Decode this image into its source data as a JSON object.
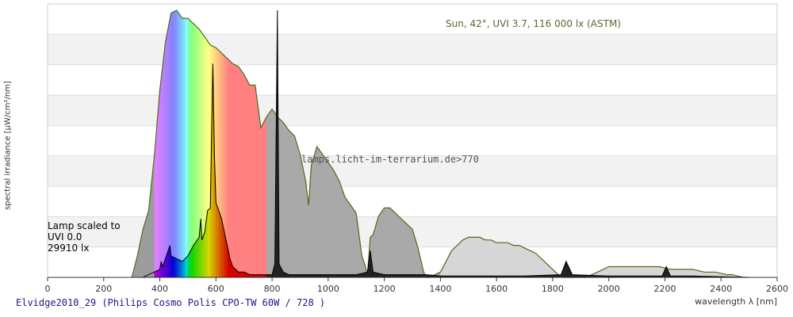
{
  "chart_data": {
    "type": "area",
    "title": "Elvidge2010_29 (Philips Cosmo Polis CPO-TW 60W / 728 )",
    "xlabel": "wavelength λ [nm]",
    "ylabel": "spectral irradiance [μW/cm²/nm]",
    "xlim": [
      0,
      2600
    ],
    "x_ticks": [
      "0",
      "200",
      "400",
      "600",
      "800",
      "1000",
      "1200",
      "1400",
      "1600",
      "1800",
      "2000",
      "2200",
      "2400",
      "2600"
    ],
    "grid": true,
    "legend": {
      "lines": [
        "Lamp scaled to",
        "UVI 0.0",
        "29910 lx"
      ],
      "placement": "left"
    },
    "annotations": {
      "sun": "Sun, 42°, UVI 3.7, 116 000 lx (ASTM)",
      "watermark": "lamps.licht-im-terrarium.de>770"
    },
    "series": [
      {
        "x": [
          300,
          320,
          340,
          360,
          380,
          400,
          420,
          440,
          460,
          480,
          500,
          520,
          540,
          560,
          580,
          600,
          620,
          640,
          660,
          680,
          700,
          720,
          740,
          760,
          780,
          800,
          820,
          840,
          860,
          880,
          900,
          920,
          930,
          940,
          960,
          980,
          1000,
          1020,
          1040,
          1060,
          1080,
          1100,
          1120,
          1130,
          1140,
          1150,
          1160,
          1180,
          1200,
          1220,
          1240,
          1260,
          1280,
          1300,
          1320,
          1340,
          1350,
          1360,
          1380,
          1400,
          1420,
          1440,
          1460,
          1480,
          1500,
          1520,
          1540,
          1560,
          1580,
          1600,
          1620,
          1640,
          1660,
          1680,
          1700,
          1720,
          1740,
          1760,
          1780,
          1800,
          1820,
          1840,
          1860,
          1880,
          1900,
          1920,
          1940,
          1960,
          1980,
          2000,
          2020,
          2040,
          2060,
          2080,
          2100,
          2120,
          2140,
          2160,
          2180,
          2200,
          2220,
          2240,
          2260,
          2280,
          2300,
          2320,
          2340,
          2360,
          2380,
          2400,
          2420,
          2440,
          2460,
          2480,
          2500
        ],
        "values": [
          0.0,
          0.08,
          0.18,
          0.25,
          0.45,
          0.7,
          0.88,
          0.99,
          1.0,
          0.97,
          0.97,
          0.95,
          0.93,
          0.9,
          0.87,
          0.86,
          0.84,
          0.82,
          0.8,
          0.79,
          0.76,
          0.72,
          0.72,
          0.56,
          0.6,
          0.63,
          0.6,
          0.58,
          0.55,
          0.53,
          0.46,
          0.36,
          0.27,
          0.42,
          0.49,
          0.46,
          0.43,
          0.4,
          0.36,
          0.3,
          0.27,
          0.24,
          0.08,
          0.05,
          0.01,
          0.15,
          0.16,
          0.23,
          0.26,
          0.26,
          0.24,
          0.22,
          0.2,
          0.18,
          0.11,
          0.02,
          0.0,
          0.0,
          0.01,
          0.02,
          0.06,
          0.1,
          0.12,
          0.14,
          0.15,
          0.15,
          0.15,
          0.14,
          0.14,
          0.13,
          0.13,
          0.13,
          0.12,
          0.12,
          0.11,
          0.1,
          0.09,
          0.07,
          0.05,
          0.03,
          0.01,
          0.0,
          0.0,
          0.0,
          0.0,
          0.0,
          0.01,
          0.02,
          0.03,
          0.04,
          0.04,
          0.04,
          0.04,
          0.04,
          0.04,
          0.04,
          0.04,
          0.04,
          0.04,
          0.035,
          0.03,
          0.03,
          0.03,
          0.03,
          0.03,
          0.025,
          0.02,
          0.02,
          0.02,
          0.015,
          0.01,
          0.01,
          0.005,
          0.0,
          0.0
        ],
        "color": "#4f6b1f"
      },
      {
        "x": [
          300,
          340,
          360,
          380,
          400,
          405,
          410,
          420,
          436,
          440,
          460,
          480,
          500,
          520,
          540,
          546,
          550,
          560,
          570,
          580,
          589,
          595,
          600,
          610,
          620,
          630,
          640,
          650,
          660,
          670,
          680,
          700,
          720,
          760,
          800,
          810,
          819,
          825,
          840,
          860,
          880,
          900,
          1000,
          1100,
          1140,
          1150,
          1160,
          1200,
          1250,
          1300,
          1350,
          1400,
          1500,
          1600,
          1700,
          1830,
          1848,
          1870,
          2000,
          2190,
          2205,
          2220,
          2300,
          2500
        ],
        "values": [
          0.0,
          0.0,
          0.01,
          0.02,
          0.03,
          0.06,
          0.04,
          0.07,
          0.12,
          0.08,
          0.07,
          0.06,
          0.08,
          0.12,
          0.15,
          0.22,
          0.14,
          0.17,
          0.25,
          0.26,
          0.8,
          0.45,
          0.28,
          0.25,
          0.22,
          0.17,
          0.12,
          0.07,
          0.04,
          0.03,
          0.02,
          0.02,
          0.01,
          0.01,
          0.01,
          0.05,
          1.0,
          0.05,
          0.02,
          0.01,
          0.01,
          0.01,
          0.01,
          0.01,
          0.02,
          0.1,
          0.02,
          0.01,
          0.01,
          0.01,
          0.01,
          0.005,
          0.005,
          0.005,
          0.005,
          0.01,
          0.06,
          0.01,
          0.005,
          0.005,
          0.04,
          0.005,
          0.005,
          0.0
        ],
        "color": "#000000"
      }
    ]
  }
}
